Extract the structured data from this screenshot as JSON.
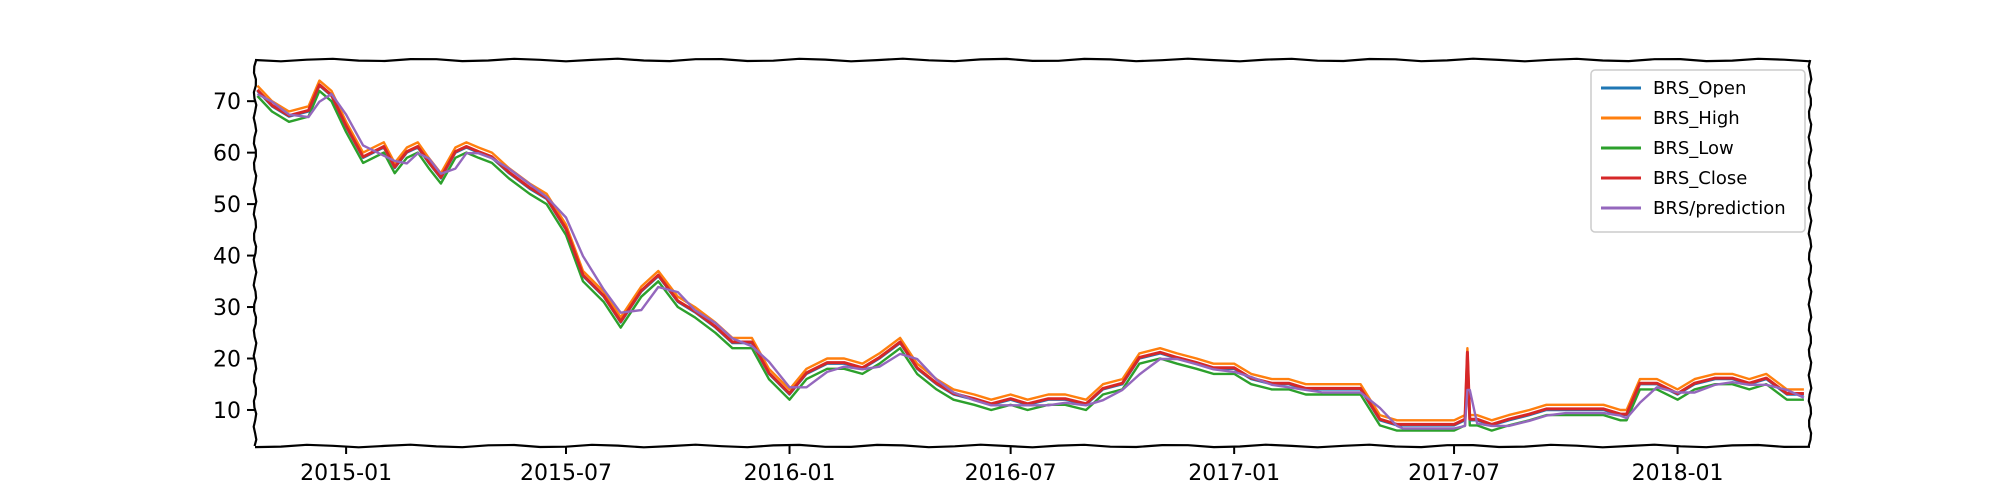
{
  "chart_data": {
    "type": "line",
    "title": "",
    "xlabel": "",
    "ylabel": "",
    "x_range": [
      "2014-10-18",
      "2018-04-20"
    ],
    "ylim": [
      3,
      78
    ],
    "grid": false,
    "legend_position": "top-right",
    "x_ticks": [
      "2015-01",
      "2015-07",
      "2016-01",
      "2016-07",
      "2017-01",
      "2017-07",
      "2018-01"
    ],
    "y_ticks": [
      10,
      20,
      30,
      40,
      50,
      60,
      70
    ],
    "series": [
      {
        "name": "BRS_Open",
        "color": "#1f77b4",
        "offset": 0.0
      },
      {
        "name": "BRS_High",
        "color": "#ff7f0e",
        "offset": 1.0
      },
      {
        "name": "BRS_Low",
        "color": "#2ca02c",
        "offset": -1.0
      },
      {
        "name": "BRS_Close",
        "color": "#d62728",
        "offset": 0.2
      },
      {
        "name": "BRS/prediction",
        "color": "#9467bd",
        "offset": -0.6
      }
    ],
    "x": [
      "2014-10-20",
      "2014-11-01",
      "2014-11-15",
      "2014-12-01",
      "2014-12-10",
      "2014-12-20",
      "2015-01-01",
      "2015-01-15",
      "2015-02-01",
      "2015-02-10",
      "2015-02-20",
      "2015-03-01",
      "2015-03-10",
      "2015-03-20",
      "2015-04-01",
      "2015-04-10",
      "2015-04-20",
      "2015-05-01",
      "2015-05-15",
      "2015-06-01",
      "2015-06-15",
      "2015-07-01",
      "2015-07-15",
      "2015-08-01",
      "2015-08-15",
      "2015-09-01",
      "2015-09-15",
      "2015-10-01",
      "2015-10-15",
      "2015-11-01",
      "2015-11-15",
      "2015-12-01",
      "2015-12-15",
      "2016-01-01",
      "2016-01-15",
      "2016-02-01",
      "2016-02-15",
      "2016-03-01",
      "2016-03-15",
      "2016-04-01",
      "2016-04-15",
      "2016-05-01",
      "2016-05-15",
      "2016-06-01",
      "2016-06-15",
      "2016-07-01",
      "2016-07-15",
      "2016-08-01",
      "2016-08-15",
      "2016-09-01",
      "2016-09-15",
      "2016-10-01",
      "2016-10-15",
      "2016-11-01",
      "2016-11-15",
      "2016-12-01",
      "2016-12-15",
      "2017-01-01",
      "2017-01-15",
      "2017-02-01",
      "2017-02-15",
      "2017-03-01",
      "2017-03-15",
      "2017-04-01",
      "2017-04-15",
      "2017-05-01",
      "2017-05-15",
      "2017-05-20",
      "2017-06-01",
      "2017-06-15",
      "2017-07-01",
      "2017-07-10",
      "2017-07-12",
      "2017-07-14",
      "2017-07-20",
      "2017-08-01",
      "2017-08-15",
      "2017-09-01",
      "2017-09-15",
      "2017-10-01",
      "2017-10-15",
      "2017-11-01",
      "2017-11-15",
      "2017-11-20",
      "2017-12-01",
      "2017-12-15",
      "2018-01-01",
      "2018-01-15",
      "2018-02-01",
      "2018-02-15",
      "2018-03-01",
      "2018-03-15",
      "2018-04-01",
      "2018-04-15"
    ],
    "values": [
      72,
      69,
      67,
      68,
      73,
      71,
      65,
      59,
      61,
      57,
      60,
      61,
      58,
      55,
      60,
      61,
      60,
      59,
      56,
      53,
      51,
      45,
      36,
      32,
      27,
      33,
      36,
      31,
      29,
      26,
      23,
      23,
      17,
      13,
      17,
      19,
      19,
      18,
      20,
      23,
      18,
      15,
      13,
      12,
      11,
      12,
      11,
      12,
      12,
      11,
      14,
      15,
      20,
      21,
      20,
      19,
      18,
      18,
      16,
      15,
      15,
      14,
      14,
      14,
      14,
      8,
      7,
      7,
      7,
      7,
      7,
      8,
      21,
      8,
      8,
      7,
      8,
      9,
      10,
      10,
      10,
      10,
      9,
      9,
      15,
      15,
      13,
      15,
      16,
      16,
      15,
      16,
      13,
      13
    ]
  },
  "legend": {
    "items": [
      "BRS_Open",
      "BRS_High",
      "BRS_Low",
      "BRS_Close",
      "BRS/prediction"
    ]
  }
}
